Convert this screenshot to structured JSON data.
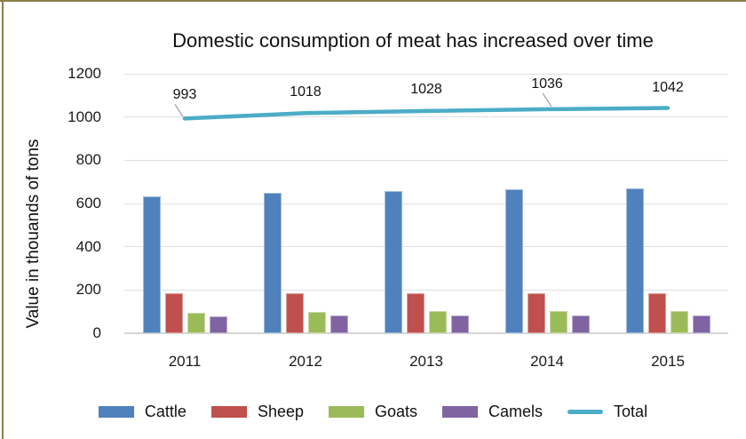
{
  "frame": {
    "border_color": "#8a8049"
  },
  "chart_data": {
    "type": "bar+line",
    "title": "Domestic consumption of meat has increased over time",
    "ylabel": "Value in thouands of tons",
    "categories": [
      "2011",
      "2012",
      "2013",
      "2014",
      "2015"
    ],
    "series": [
      {
        "name": "Cattle",
        "type": "bar",
        "color": "#4f81bd",
        "values": [
          634,
          651,
          659,
          664,
          669
        ]
      },
      {
        "name": "Sheep",
        "type": "bar",
        "color": "#c0504d",
        "values": [
          183,
          184,
          184,
          185,
          185
        ]
      },
      {
        "name": "Goats",
        "type": "bar",
        "color": "#9bbb59",
        "values": [
          96,
          100,
          102,
          103,
          104
        ]
      },
      {
        "name": "Camels",
        "type": "bar",
        "color": "#8064a2",
        "values": [
          80,
          83,
          83,
          84,
          84
        ]
      },
      {
        "name": "Total",
        "type": "line",
        "color": "#4bacc6",
        "values": [
          993,
          1018,
          1028,
          1036,
          1042
        ],
        "data_labels": [
          "993",
          "1018",
          "1028",
          "1036",
          "1042"
        ]
      }
    ],
    "ylim": [
      0,
      1200
    ],
    "yticks": [
      1200,
      1000,
      800,
      600,
      400,
      200,
      0
    ],
    "grid": true,
    "legend_position": "bottom"
  }
}
